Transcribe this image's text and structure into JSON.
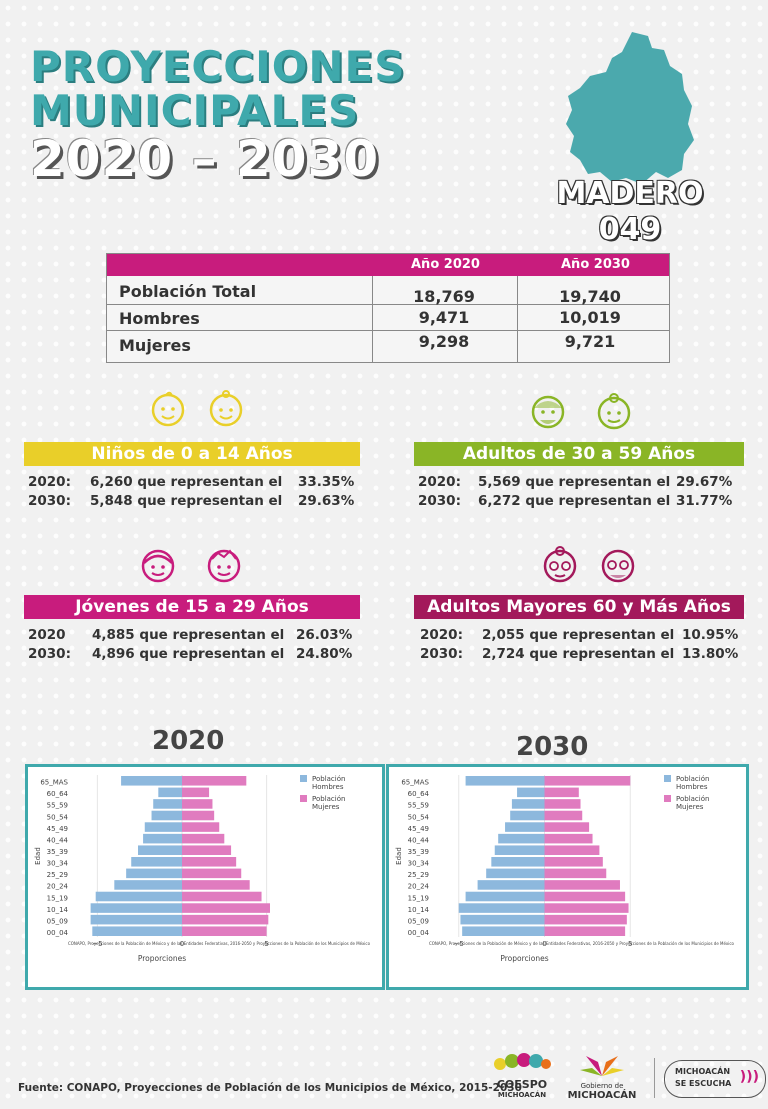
{
  "title": {
    "line1": "PROYECCIONES",
    "line2": "MUNICIPALES",
    "line3": "2020 – 2030"
  },
  "municipio": {
    "name": "MADERO",
    "code": "049"
  },
  "summary": {
    "headers": [
      "Año 2020",
      "Año 2030"
    ],
    "rows": [
      {
        "label": "Población Total",
        "y2020": "18,769",
        "y2030": "19,740"
      },
      {
        "label": "Hombres",
        "y2020": "9,471",
        "y2030": "10,019"
      },
      {
        "label": "Mujeres",
        "y2020": "9,298",
        "y2030": "9,721"
      }
    ]
  },
  "groups": [
    {
      "title": "Niños de 0 a 14 Años",
      "color": "#e9cf29",
      "icon_color": "#e9cf29",
      "icons": [
        "baby-boy-icon",
        "baby-girl-icon"
      ],
      "rows": [
        {
          "year": "2020:",
          "text": "6,260 que representan el",
          "pct": "33.35%"
        },
        {
          "year": "2030:",
          "text": "5,848 que representan el",
          "pct": "29.63%"
        }
      ]
    },
    {
      "title": "Adultos de 30 a 59 Años",
      "color": "#8ab526",
      "icon_color": "#8ab526",
      "icons": [
        "adult-man-icon",
        "adult-woman-icon"
      ],
      "rows": [
        {
          "year": "2020:",
          "text": "5,569 que representan el",
          "pct": "29.67%"
        },
        {
          "year": "2030:",
          "text": "6,272 que representan el",
          "pct": "31.77%"
        }
      ]
    },
    {
      "title": "Jóvenes de 15 a 29 Años",
      "color": "#c81c7d",
      "icon_color": "#c81c7d",
      "icons": [
        "young-woman-icon",
        "young-man-icon"
      ],
      "rows": [
        {
          "year": "2020",
          "text": "4,885 que representan el",
          "pct": "26.03%"
        },
        {
          "year": "2030:",
          "text": "4,896 que representan el",
          "pct": "24.80%"
        }
      ]
    },
    {
      "title": "Adultos Mayores  60 y Más Años",
      "color": "#a3195b",
      "icon_color": "#a3195b",
      "icons": [
        "elderly-woman-icon",
        "elderly-man-icon"
      ],
      "rows": [
        {
          "year": "2020:",
          "text": "2,055 que representan el",
          "pct": "10.95%"
        },
        {
          "year": "2030:",
          "text": "2,724 que representan el",
          "pct": "13.80%"
        }
      ]
    }
  ],
  "chart_labels": {
    "year2020": "2020",
    "year2030": "2030"
  },
  "chart_data": [
    {
      "type": "bar",
      "title": "2020",
      "orientation": "horizontal-pyramid",
      "categories": [
        "00_04",
        "05_09",
        "10_14",
        "15_19",
        "20_24",
        "25_29",
        "30_34",
        "35_39",
        "40_44",
        "45_49",
        "50_54",
        "55_59",
        "60_64",
        "65_MAS"
      ],
      "xlabel": "Proporciones",
      "ylabel": "Edad",
      "xticks": [
        "−5",
        "0",
        "5"
      ],
      "xlim": [
        -6.5,
        6.5
      ],
      "series": [
        {
          "name": "Población Hombres",
          "color": "#8db8dd",
          "values": [
            -5.3,
            -5.4,
            -5.4,
            -5.1,
            -4.0,
            -3.3,
            -3.0,
            -2.6,
            -2.3,
            -2.2,
            -1.8,
            -1.7,
            -1.4,
            -3.6
          ]
        },
        {
          "name": "Población Mujeres",
          "color": "#e07bbf",
          "values": [
            5.0,
            5.1,
            5.2,
            4.7,
            4.0,
            3.5,
            3.2,
            2.9,
            2.5,
            2.2,
            1.9,
            1.8,
            1.6,
            3.8
          ]
        }
      ],
      "source": "CONAPO, Proyecciones de la Población de México y de las Entidades Federativas, 2016-2050 y Proyecciones de la Población de los Municipios de México"
    },
    {
      "type": "bar",
      "title": "2030",
      "orientation": "horizontal-pyramid",
      "categories": [
        "00_04",
        "05_09",
        "10_14",
        "15_19",
        "20_24",
        "25_29",
        "30_34",
        "35_39",
        "40_44",
        "45_49",
        "50_54",
        "55_59",
        "60_64",
        "65_MAS"
      ],
      "xlabel": "Proporciones",
      "ylabel": "Edad",
      "xticks": [
        "−5",
        "0",
        "5"
      ],
      "xlim": [
        -6.5,
        6.5
      ],
      "series": [
        {
          "name": "Población Hombres",
          "color": "#8db8dd",
          "values": [
            -4.8,
            -4.9,
            -5.0,
            -4.6,
            -3.9,
            -3.4,
            -3.1,
            -2.9,
            -2.7,
            -2.3,
            -2.0,
            -1.9,
            -1.6,
            -4.6
          ]
        },
        {
          "name": "Población Mujeres",
          "color": "#e07bbf",
          "values": [
            4.7,
            4.8,
            4.9,
            4.7,
            4.4,
            3.6,
            3.4,
            3.2,
            2.8,
            2.6,
            2.2,
            2.1,
            2.0,
            5.0
          ]
        }
      ],
      "source": "CONAPO, Proyecciones de la Población de México y de las Entidades Federativas, 2016-2050 y Proyecciones de la Población de los Municipios de México"
    }
  ],
  "footer": "Fuente: CONAPO, Proyecciones de Población de los Municipios de México, 2015-2030",
  "logos": {
    "coespo": "COESPO",
    "coespo_sub": "MICHOACÁN",
    "gobierno": "Gobierno de",
    "gobierno_sub": "MICHOACÁN",
    "escucha1": "MICHOACÁN",
    "escucha2": "SE ESCUCHA"
  }
}
